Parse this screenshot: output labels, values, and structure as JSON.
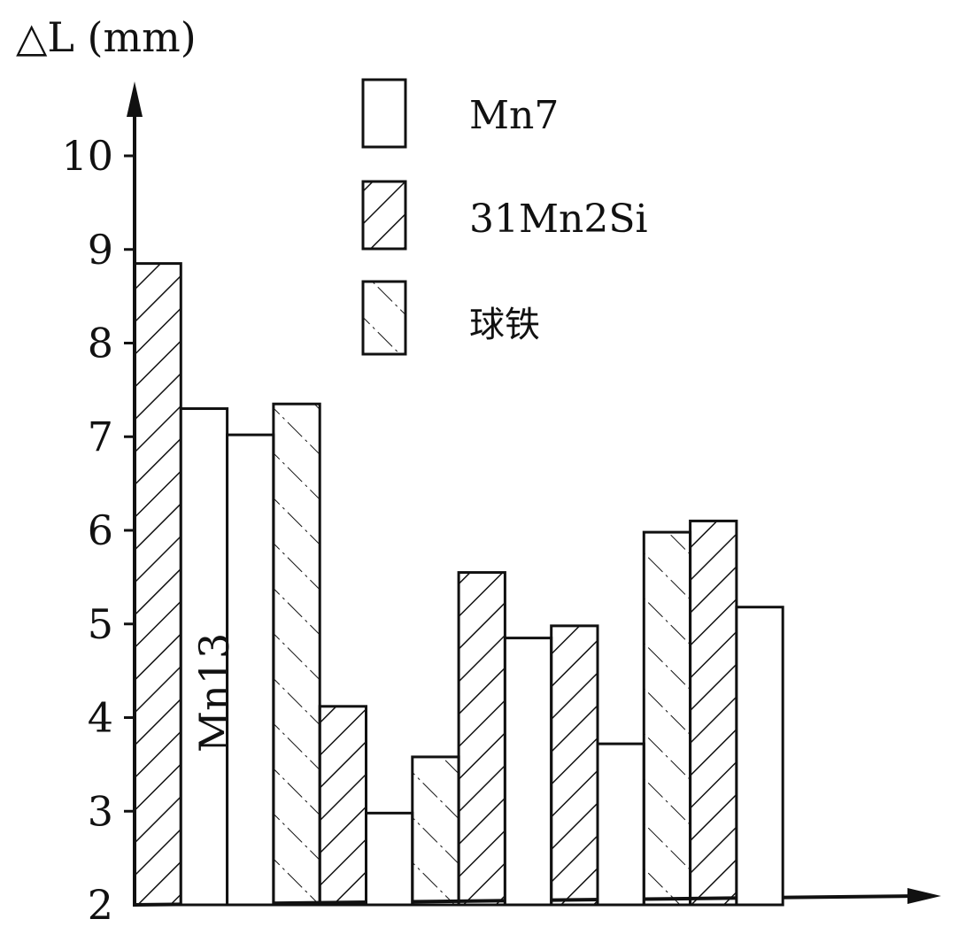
{
  "chart_data": {
    "type": "bar",
    "ylabel": "△L (mm)",
    "xlabel": "",
    "ylim": [
      2,
      11
    ],
    "yticks": [
      "2",
      "3",
      "4",
      "5",
      "6",
      "7",
      "8",
      "9",
      "10"
    ],
    "grid": false,
    "legend_position": "top-center",
    "series": [
      {
        "name": "Mn7",
        "pattern": "plain"
      },
      {
        "name": "31Mn2Si",
        "pattern": "backslash-hatch"
      },
      {
        "name": "球铁",
        "pattern": "dash-dot-slash-hatch"
      }
    ],
    "bars": [
      {
        "series": "31Mn2Si",
        "value": 8.85
      },
      {
        "series": "Mn7",
        "value": 7.3
      },
      {
        "series": "Mn7",
        "value": 7.02
      },
      {
        "series": "球铁",
        "value": 7.35
      },
      {
        "series": "31Mn2Si",
        "value": 4.12
      },
      {
        "series": "Mn7",
        "value": 2.98
      },
      {
        "series": "球铁",
        "value": 3.58
      },
      {
        "series": "31Mn2Si",
        "value": 5.55
      },
      {
        "series": "Mn7",
        "value": 4.85
      },
      {
        "series": "31Mn2Si",
        "value": 4.98
      },
      {
        "series": "Mn7",
        "value": 3.72
      },
      {
        "series": "球铁",
        "value": 5.98
      },
      {
        "series": "31Mn2Si",
        "value": 6.1
      },
      {
        "series": "Mn7",
        "value": 5.18
      }
    ],
    "annotations": [
      "Mn13"
    ]
  }
}
